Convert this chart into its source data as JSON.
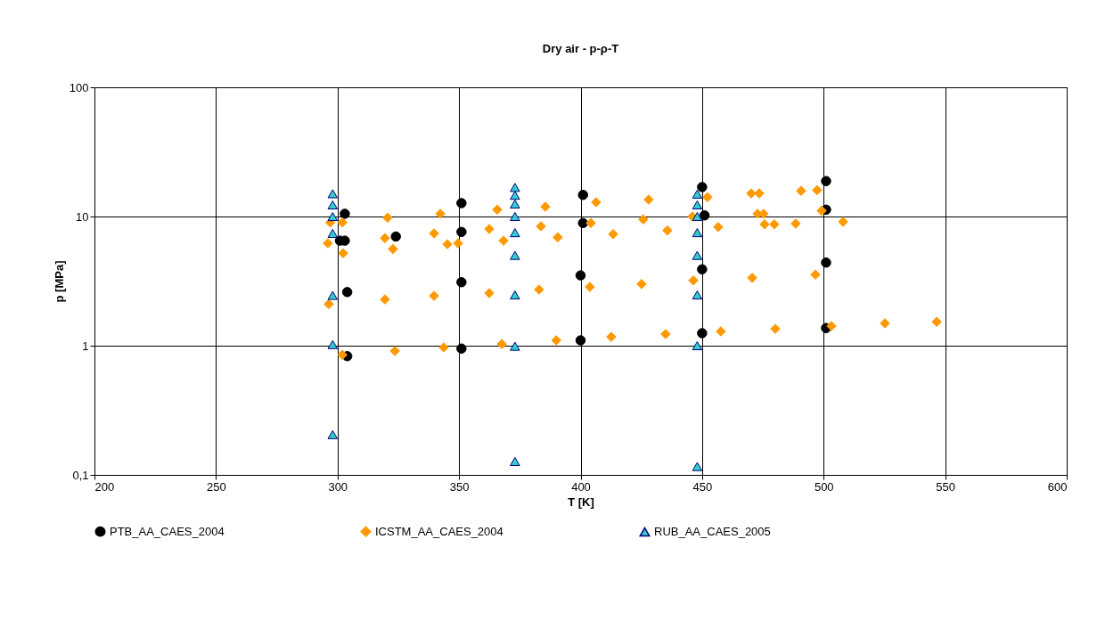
{
  "chart_data": {
    "type": "scatter",
    "title": "Dry air - p-ρ-T",
    "xlabel": "T [K]",
    "ylabel": "p [MPa]",
    "log": "y",
    "grid": true,
    "legend": "bottom",
    "xlim": [
      200,
      600
    ],
    "xticks": [
      200,
      250,
      300,
      350,
      400,
      450,
      500,
      550,
      600
    ],
    "ylim": [
      0.1,
      100
    ],
    "yticks": [
      {
        "value": 0.1,
        "label": "0,1"
      },
      1,
      10,
      100
    ],
    "series": [
      {
        "name": "PTB_AA_CAES_2004",
        "color": "#000000",
        "marker": "circle",
        "x": [
          301,
          303,
          303,
          304,
          304,
          324,
          351,
          351,
          351,
          351,
          401,
          401,
          400,
          400,
          450,
          451,
          450,
          450,
          501,
          501,
          501,
          501
        ],
        "values": [
          6.5,
          6.5,
          10.5,
          2.6,
          0.83,
          7.0,
          12.7,
          7.6,
          3.1,
          0.95,
          14.7,
          8.9,
          3.5,
          1.1,
          16.9,
          10.2,
          3.9,
          1.25,
          18.8,
          11.3,
          4.4,
          1.37
        ]
      },
      {
        "name": "ICSTM_AA_CAES_2004",
        "color": "#ff9900",
        "marker": "diamond",
        "x": [
          296,
          297,
          302,
          302.3,
          296.4,
          302,
          320.6,
          319.5,
          322.8,
          319.5,
          323.6,
          342.3,
          339.7,
          345.2,
          349.6,
          339.7,
          343.7,
          365.7,
          362.4,
          368.3,
          362.4,
          367.6,
          385.5,
          383.7,
          390.6,
          382.9,
          390,
          406.4,
          404.2,
          413.4,
          403.8,
          412.6,
          428,
          425.8,
          435.7,
          425.1,
          435,
          446,
          452.2,
          456.6,
          446.4,
          457.7,
          470.2,
          473.5,
          472.8,
          475.3,
          475.7,
          479.7,
          488.5,
          470.6,
          480.1,
          490.7,
          497.3,
          499.2,
          496.6,
          503.2,
          508,
          525.2,
          546.5
        ],
        "values": [
          6.2,
          9,
          9,
          5.2,
          2.1,
          0.85,
          9.8,
          6.8,
          5.6,
          2.28,
          0.91,
          10.5,
          7.4,
          6.1,
          6.2,
          2.43,
          0.97,
          11.3,
          8.0,
          6.5,
          2.55,
          1.03,
          11.9,
          8.4,
          6.9,
          2.72,
          1.1,
          12.9,
          8.9,
          7.3,
          2.85,
          1.17,
          13.5,
          9.5,
          7.8,
          3.0,
          1.23,
          10,
          14.1,
          8.3,
          3.2,
          1.29,
          15.1,
          15.1,
          10.5,
          10.5,
          8.7,
          8.7,
          8.8,
          3.35,
          1.35,
          15.8,
          16,
          11.1,
          3.55,
          1.42,
          9.1,
          1.49,
          1.53
        ]
      },
      {
        "name": "RUB_AA_CAES_2005",
        "color": "#33cccc",
        "marker": "triangle",
        "x": [
          298,
          298,
          298,
          298,
          298,
          298,
          298,
          373,
          373,
          373,
          373,
          373,
          373,
          373,
          373,
          373,
          448,
          448,
          448,
          448,
          448,
          448,
          448,
          448
        ],
        "values": [
          15,
          12.3,
          10,
          7.4,
          2.45,
          1.02,
          0.205,
          16.8,
          14.6,
          12.5,
          10,
          7.5,
          5,
          2.47,
          0.99,
          0.127,
          14.9,
          12.3,
          10,
          7.5,
          5,
          2.47,
          1.0,
          0.116
        ]
      }
    ]
  }
}
